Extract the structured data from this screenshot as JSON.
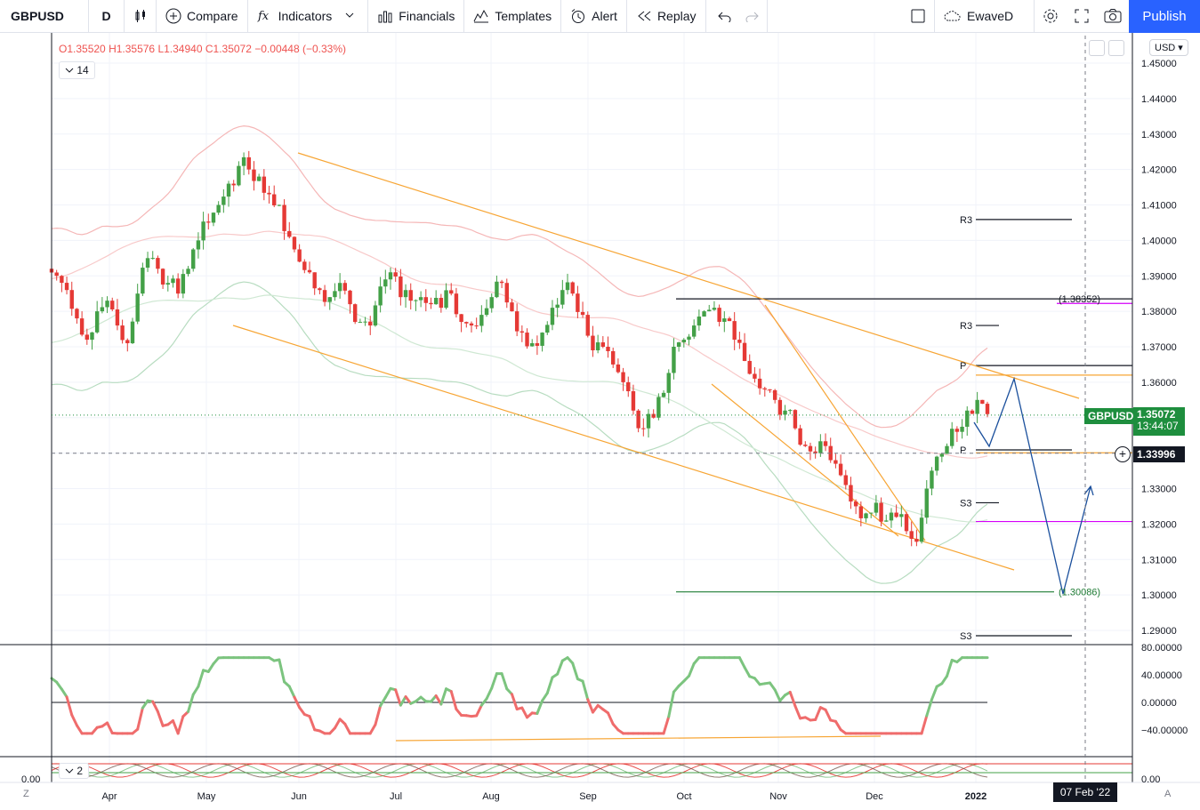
{
  "toolbar": {
    "symbol": "GBPUSD",
    "interval": "D",
    "compare": "Compare",
    "indicators": "Indicators",
    "financials": "Financials",
    "templates": "Templates",
    "alert": "Alert",
    "replay": "Replay",
    "layout_name": "EwaveD",
    "publish": "Publish"
  },
  "legend": {
    "open": "O1.35520",
    "high": "H1.35576",
    "low": "L1.34940",
    "close": "C1.35072",
    "change": "−0.00448 (−0.33%)",
    "indicator_1": "14",
    "indicator_2": "2"
  },
  "currency": "USD",
  "price_axis": [
    "1.45000",
    "1.44000",
    "1.43000",
    "1.42000",
    "1.41000",
    "1.40000",
    "1.39000",
    "1.38000",
    "1.37000",
    "1.36000",
    "1.35000",
    "1.34000",
    "1.33000",
    "1.32000",
    "1.31000",
    "1.30000",
    "1.29000"
  ],
  "osc_axis": [
    "80.00000",
    "40.00000",
    "0.00000",
    "−40.00000"
  ],
  "bottom_axis": [
    "0.00",
    "0.00"
  ],
  "time_axis": [
    "Apr",
    "May",
    "Jun",
    "Jul",
    "Aug",
    "Sep",
    "Oct",
    "Nov",
    "Dec",
    "2022"
  ],
  "price_tags": {
    "symbol_label": "GBPUSD",
    "last_price": "1.35072",
    "countdown": "13:44:07",
    "crosshair_price": "1.33996"
  },
  "time_tag": "07 Feb '22",
  "annotations": {
    "fib_high": "(1.38352)",
    "fib_low": "(1.30086)",
    "pivots": [
      {
        "label": "R3",
        "price": 1.4059
      },
      {
        "label": "R3",
        "price": 1.376
      },
      {
        "label": "P",
        "price": 1.3647
      },
      {
        "label": "P",
        "price": 1.3409
      },
      {
        "label": "S3",
        "price": 1.326
      },
      {
        "label": "S3",
        "price": 1.2885
      }
    ]
  },
  "colors": {
    "up": "#26a69a",
    "candle_up": "#43a047",
    "candle_down": "#e53935",
    "channel": "#f7a534",
    "projection": "#2962ff",
    "bb_outer": "#f5b7b7",
    "bb_inner": "#b7dcc0",
    "accent": "#2962ff"
  },
  "chart_data": {
    "type": "candlestick",
    "symbol": "GBPUSD",
    "interval": "D",
    "ylim": [
      1.285,
      1.455
    ],
    "close_path": [
      1.39,
      1.386,
      1.378,
      1.372,
      1.38,
      1.383,
      1.376,
      1.371,
      1.385,
      1.395,
      1.392,
      1.388,
      1.385,
      1.392,
      1.4,
      1.405,
      1.41,
      1.416,
      1.421,
      1.42,
      1.418,
      1.413,
      1.41,
      1.401,
      1.394,
      1.391,
      1.386,
      1.384,
      1.388,
      1.382,
      1.377,
      1.376,
      1.387,
      1.391,
      1.384,
      1.383,
      1.384,
      1.382,
      1.381,
      1.385,
      1.377,
      1.376,
      1.379,
      1.384,
      1.388,
      1.38,
      1.374,
      1.371,
      1.374,
      1.381,
      1.386,
      1.385,
      1.379,
      1.369,
      1.37,
      1.365,
      1.36,
      1.352,
      1.347,
      1.35,
      1.357,
      1.37,
      1.372,
      1.376,
      1.38,
      1.381,
      1.378,
      1.372,
      1.366,
      1.361,
      1.358,
      1.355,
      1.352,
      1.347,
      1.342,
      1.34,
      1.342,
      1.337,
      1.331,
      1.325,
      1.323,
      1.326,
      1.321,
      1.322,
      1.318,
      1.315,
      1.33,
      1.339,
      1.342,
      1.346,
      1.352,
      1.355,
      1.351
    ],
    "pivot_levels": {
      "R3_upper": 1.4059,
      "fib_high": 1.38352,
      "R3_lower": 1.376,
      "P_upper": 1.3647,
      "resistance": 1.362,
      "last": 1.35072,
      "P_lower": 1.3409,
      "crosshair": 1.33996,
      "S3_upper": 1.326,
      "pink_lower": 1.3207,
      "fib_low": 1.30086,
      "S3_lower": 1.2885
    }
  }
}
